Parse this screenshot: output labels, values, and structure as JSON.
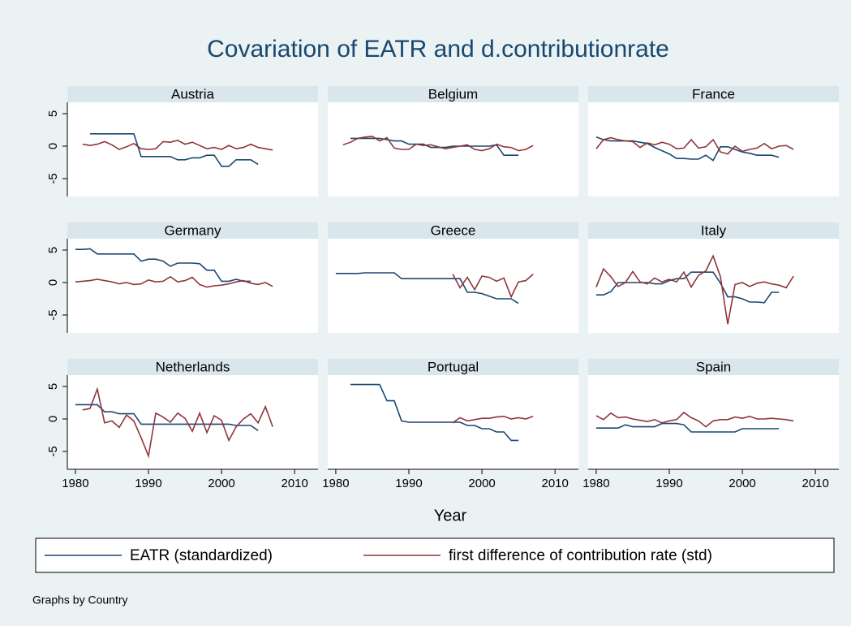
{
  "chart_data": {
    "type": "line",
    "title": "Covariation of EATR and d.contributionrate",
    "xlabel": "Year",
    "note": "Graphs by Country",
    "x": [
      1980,
      1981,
      1982,
      1983,
      1984,
      1985,
      1986,
      1987,
      1988,
      1989,
      1990,
      1991,
      1992,
      1993,
      1994,
      1995,
      1996,
      1997,
      1998,
      1999,
      2000,
      2001,
      2002,
      2003,
      2004,
      2005,
      2006,
      2007
    ],
    "xlim": [
      1978.9,
      2013.2
    ],
    "xticks": [
      1980,
      1990,
      2000,
      2010
    ],
    "ylim": [
      -7.75,
      6.75
    ],
    "yticks": [
      -5,
      0,
      5
    ],
    "series": [
      {
        "name": "EATR (standardized)",
        "color": "#1a476f"
      },
      {
        "name": "first difference of contribution rate (std)",
        "color": "#90353b"
      }
    ],
    "panels": [
      {
        "title": "Austria",
        "series": [
          {
            "values": [
              null,
              null,
              1.9,
              1.9,
              1.9,
              1.9,
              1.9,
              1.9,
              1.9,
              -1.6,
              -1.6,
              -1.6,
              -1.6,
              -1.6,
              -2.1,
              -2.1,
              -1.8,
              -1.8,
              -1.4,
              -1.4,
              -3.1,
              -3.1,
              -2.1,
              -2.1,
              -2.1,
              -2.8,
              null,
              null
            ]
          },
          {
            "values": [
              null,
              0.3,
              0.1,
              0.3,
              0.7,
              0.2,
              -0.5,
              -0.1,
              0.4,
              -0.4,
              -0.5,
              -0.4,
              0.7,
              0.6,
              0.9,
              0.3,
              0.6,
              0.1,
              -0.4,
              -0.2,
              -0.5,
              0.1,
              -0.4,
              -0.2,
              0.3,
              -0.2,
              -0.4,
              -0.6
            ]
          }
        ]
      },
      {
        "title": "Belgium",
        "series": [
          {
            "values": [
              null,
              null,
              1.2,
              1.2,
              1.2,
              1.2,
              1.2,
              1.0,
              0.8,
              0.8,
              0.3,
              0.3,
              0.3,
              -0.2,
              -0.2,
              -0.2,
              0.0,
              0.0,
              0.0,
              0.0,
              0.0,
              0.0,
              0.2,
              -1.4,
              -1.4,
              -1.4,
              null,
              null
            ]
          },
          {
            "values": [
              null,
              0.2,
              0.6,
              1.2,
              1.4,
              1.5,
              0.8,
              1.3,
              -0.3,
              -0.5,
              -0.5,
              0.3,
              0.1,
              0.2,
              -0.1,
              -0.4,
              -0.2,
              0.0,
              0.2,
              -0.5,
              -0.7,
              -0.4,
              0.3,
              -0.1,
              -0.2,
              -0.7,
              -0.5,
              0.1
            ]
          }
        ]
      },
      {
        "title": "France",
        "series": [
          {
            "values": [
              1.4,
              1.0,
              0.8,
              0.8,
              0.8,
              0.8,
              0.6,
              0.4,
              -0.2,
              -0.7,
              -1.2,
              -1.9,
              -1.9,
              -2.0,
              -2.0,
              -1.4,
              -2.2,
              -0.1,
              -0.1,
              -0.5,
              -0.9,
              -1.1,
              -1.4,
              -1.4,
              -1.4,
              -1.7,
              null,
              null
            ]
          },
          {
            "values": [
              -0.4,
              1.0,
              1.3,
              1.0,
              0.8,
              0.7,
              -0.2,
              0.5,
              0.2,
              0.6,
              0.3,
              -0.4,
              -0.3,
              1.0,
              -0.3,
              -0.1,
              1.0,
              -0.9,
              -1.2,
              0.0,
              -0.8,
              -0.5,
              -0.3,
              0.4,
              -0.4,
              0.0,
              0.1,
              -0.5
            ]
          }
        ]
      },
      {
        "title": "Germany",
        "series": [
          {
            "values": [
              5.1,
              5.1,
              5.2,
              4.4,
              4.4,
              4.4,
              4.4,
              4.4,
              4.4,
              3.3,
              3.6,
              3.6,
              3.3,
              2.5,
              3.0,
              3.0,
              3.0,
              2.9,
              1.9,
              1.9,
              0.2,
              0.2,
              0.5,
              0.2,
              0.2,
              null,
              null,
              null
            ]
          },
          {
            "values": [
              0.1,
              0.2,
              0.3,
              0.5,
              0.3,
              0.1,
              -0.2,
              0.0,
              -0.3,
              -0.2,
              0.4,
              0.1,
              0.2,
              0.9,
              0.1,
              0.3,
              0.8,
              -0.3,
              -0.7,
              -0.5,
              -0.4,
              -0.2,
              0.1,
              0.3,
              -0.1,
              -0.3,
              0.0,
              -0.6
            ]
          }
        ]
      },
      {
        "title": "Greece",
        "series": [
          {
            "values": [
              1.4,
              1.4,
              1.4,
              1.4,
              1.5,
              1.5,
              1.5,
              1.5,
              1.5,
              0.6,
              0.6,
              0.6,
              0.6,
              0.6,
              0.6,
              0.6,
              0.6,
              0.6,
              -1.5,
              -1.5,
              -1.7,
              -2.1,
              -2.5,
              -2.5,
              -2.5,
              -3.2,
              null,
              null
            ]
          },
          {
            "values": [
              null,
              null,
              null,
              null,
              null,
              null,
              null,
              null,
              null,
              null,
              null,
              null,
              null,
              null,
              null,
              null,
              1.3,
              -0.8,
              0.8,
              -1.1,
              1.0,
              0.8,
              0.2,
              0.7,
              -2.2,
              0.1,
              0.3,
              1.3
            ]
          }
        ]
      },
      {
        "title": "Italy",
        "series": [
          {
            "values": [
              -1.9,
              -1.9,
              -1.4,
              0.0,
              0.0,
              0.0,
              0.0,
              0.0,
              -0.2,
              -0.2,
              0.3,
              0.6,
              0.6,
              1.6,
              1.6,
              1.6,
              1.6,
              -0.1,
              -2.2,
              -2.2,
              -2.5,
              -3.0,
              -3.0,
              -3.1,
              -1.5,
              -1.5,
              null,
              null
            ]
          },
          {
            "values": [
              -0.7,
              2.1,
              0.9,
              -0.6,
              0.0,
              1.7,
              0.1,
              -0.2,
              0.7,
              0.1,
              0.5,
              0.1,
              1.6,
              -0.7,
              1.1,
              1.8,
              4.1,
              0.9,
              -6.4,
              -0.3,
              0.0,
              -0.6,
              -0.1,
              0.1,
              -0.2,
              -0.4,
              -0.8,
              1.0
            ]
          }
        ]
      },
      {
        "title": "Netherlands",
        "series": [
          {
            "values": [
              2.2,
              2.2,
              2.2,
              2.2,
              1.1,
              1.1,
              0.8,
              0.8,
              0.8,
              -0.8,
              -0.8,
              -0.8,
              -0.8,
              -0.8,
              -0.8,
              -0.8,
              -0.8,
              -0.8,
              -0.8,
              -0.8,
              -0.8,
              -0.8,
              -1.0,
              -1.0,
              -1.0,
              -1.8,
              null,
              null
            ]
          },
          {
            "values": [
              null,
              1.4,
              1.6,
              4.6,
              -0.6,
              -0.3,
              -1.3,
              0.6,
              -0.3,
              -2.9,
              -5.7,
              0.9,
              0.3,
              -0.5,
              0.9,
              0.1,
              -1.9,
              0.9,
              -2.1,
              0.5,
              -0.2,
              -3.3,
              -1.2,
              0.0,
              0.8,
              -0.6,
              1.9,
              -1.2
            ]
          }
        ]
      },
      {
        "title": "Portugal",
        "series": [
          {
            "values": [
              null,
              null,
              5.3,
              5.3,
              5.3,
              5.3,
              5.3,
              2.8,
              2.8,
              -0.3,
              -0.5,
              -0.5,
              -0.5,
              -0.5,
              -0.5,
              -0.5,
              -0.5,
              -0.5,
              -1.0,
              -1.0,
              -1.5,
              -1.5,
              -2.0,
              -2.0,
              -3.3,
              -3.3,
              null,
              null
            ]
          },
          {
            "values": [
              null,
              null,
              null,
              null,
              null,
              null,
              null,
              null,
              null,
              null,
              null,
              null,
              null,
              null,
              null,
              null,
              -0.6,
              0.2,
              -0.3,
              -0.1,
              0.1,
              0.1,
              0.3,
              0.4,
              0.0,
              0.2,
              0.0,
              0.4
            ]
          }
        ]
      },
      {
        "title": "Spain",
        "series": [
          {
            "values": [
              -1.4,
              -1.4,
              -1.4,
              -1.4,
              -0.9,
              -1.2,
              -1.2,
              -1.2,
              -1.2,
              -0.7,
              -0.7,
              -0.7,
              -0.9,
              -2.0,
              -2.0,
              -2.0,
              -2.0,
              -2.0,
              -2.0,
              -2.0,
              -1.5,
              -1.5,
              -1.5,
              -1.5,
              -1.5,
              -1.5,
              null,
              null
            ]
          },
          {
            "values": [
              0.5,
              -0.1,
              0.9,
              0.2,
              0.3,
              0.0,
              -0.2,
              -0.4,
              -0.1,
              -0.6,
              -0.3,
              -0.1,
              1.0,
              0.2,
              -0.3,
              -1.2,
              -0.3,
              -0.1,
              -0.1,
              0.3,
              0.1,
              0.4,
              0.0,
              0.0,
              0.1,
              0.0,
              -0.1,
              -0.3
            ]
          }
        ]
      }
    ]
  }
}
